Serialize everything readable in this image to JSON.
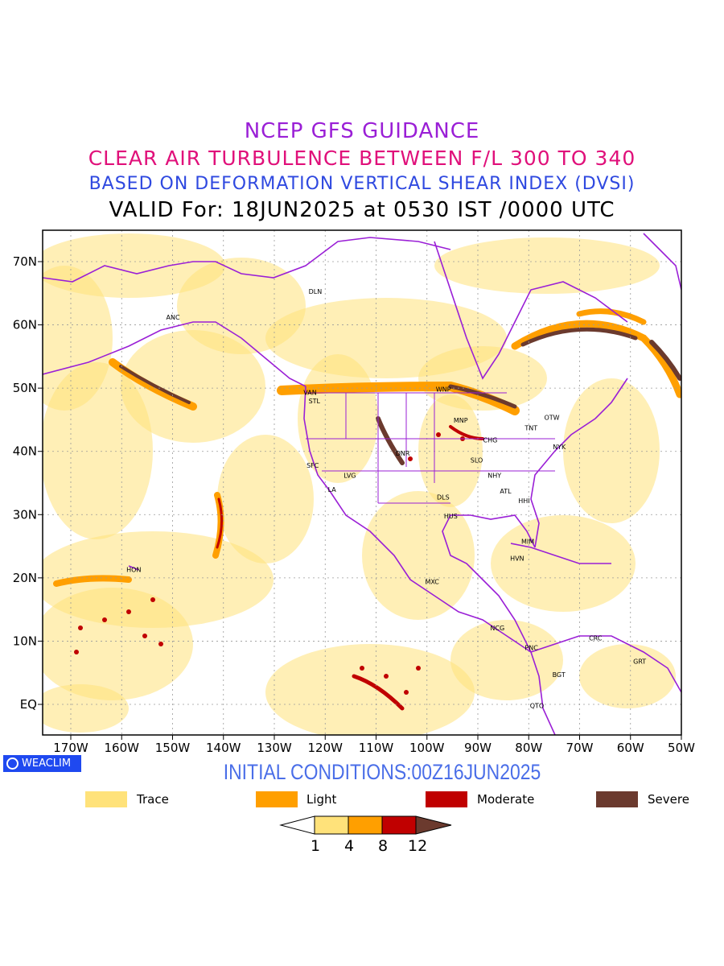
{
  "titles": {
    "line1": "NCEP GFS GUIDANCE",
    "line2": "CLEAR AIR TURBULENCE BETWEEN F/L 300 TO 340",
    "line3": "BASED ON DEFORMATION VERTICAL SHEAR INDEX (DVSI)",
    "line4": "VALID For: 18JUN2025 at 0530 IST /0000 UTC"
  },
  "initial_conditions": "INITIAL CONDITIONS:00Z16JUN2025",
  "logo_text": "WEACLIM",
  "colors": {
    "trace": "#ffe27a",
    "light": "#ff9f00",
    "moderate": "#c00000",
    "severe": "#6b3a2e",
    "borders": "#9a1fd6"
  },
  "legend": [
    {
      "label": "Trace",
      "color": "#ffe27a"
    },
    {
      "label": "Light",
      "color": "#ff9f00"
    },
    {
      "label": "Moderate",
      "color": "#c00000"
    },
    {
      "label": "Severe",
      "color": "#6b3a2e"
    }
  ],
  "colorbar_ticks": [
    "1",
    "4",
    "8",
    "12"
  ],
  "axes": {
    "lon_labels": [
      "170W",
      "160W",
      "150W",
      "140W",
      "130W",
      "120W",
      "110W",
      "100W",
      "90W",
      "80W",
      "70W",
      "60W",
      "50W"
    ],
    "lat_labels": [
      "70N",
      "60N",
      "50N",
      "40N",
      "30N",
      "20N",
      "10N",
      "EQ"
    ]
  },
  "stations": [
    {
      "code": "ANC",
      "lon": -150.0,
      "lat": 61.2
    },
    {
      "code": "DLN",
      "lon": -122.0,
      "lat": 65.3
    },
    {
      "code": "VAN",
      "lon": -123.0,
      "lat": 49.3
    },
    {
      "code": "STL",
      "lon": -122.0,
      "lat": 48.0
    },
    {
      "code": "WNP",
      "lon": -97.0,
      "lat": 49.8
    },
    {
      "code": "MNP",
      "lon": -93.5,
      "lat": 44.9
    },
    {
      "code": "OTW",
      "lon": -75.7,
      "lat": 45.4
    },
    {
      "code": "TNT",
      "lon": -79.5,
      "lat": 43.7
    },
    {
      "code": "CHG",
      "lon": -87.7,
      "lat": 41.8
    },
    {
      "code": "NYK",
      "lon": -74.0,
      "lat": 40.7
    },
    {
      "code": "DNR",
      "lon": -104.9,
      "lat": 39.7
    },
    {
      "code": "SFC",
      "lon": -122.4,
      "lat": 37.8
    },
    {
      "code": "LVG",
      "lon": -115.1,
      "lat": 36.2
    },
    {
      "code": "LA",
      "lon": -118.2,
      "lat": 34.0
    },
    {
      "code": "SLO",
      "lon": -90.2,
      "lat": 38.6
    },
    {
      "code": "NHY",
      "lon": -86.8,
      "lat": 36.2
    },
    {
      "code": "ATL",
      "lon": -84.4,
      "lat": 33.7
    },
    {
      "code": "DLS",
      "lon": -96.8,
      "lat": 32.8
    },
    {
      "code": "HHI",
      "lon": -80.8,
      "lat": 32.2
    },
    {
      "code": "HUS",
      "lon": -95.4,
      "lat": 29.8
    },
    {
      "code": "MIM",
      "lon": -80.2,
      "lat": 25.8
    },
    {
      "code": "HVN",
      "lon": -82.4,
      "lat": 23.1
    },
    {
      "code": "HON",
      "lon": -157.8,
      "lat": 21.3
    },
    {
      "code": "MXC",
      "lon": -99.1,
      "lat": 19.4
    },
    {
      "code": "NCG",
      "lon": -86.3,
      "lat": 12.1
    },
    {
      "code": "CRC",
      "lon": -66.9,
      "lat": 10.5
    },
    {
      "code": "PNC",
      "lon": -79.5,
      "lat": 9.0
    },
    {
      "code": "GRT",
      "lon": -58.2,
      "lat": 6.8
    },
    {
      "code": "BGT",
      "lon": -74.1,
      "lat": 4.7
    },
    {
      "code": "QTO",
      "lon": -78.5,
      "lat": -0.2
    }
  ]
}
